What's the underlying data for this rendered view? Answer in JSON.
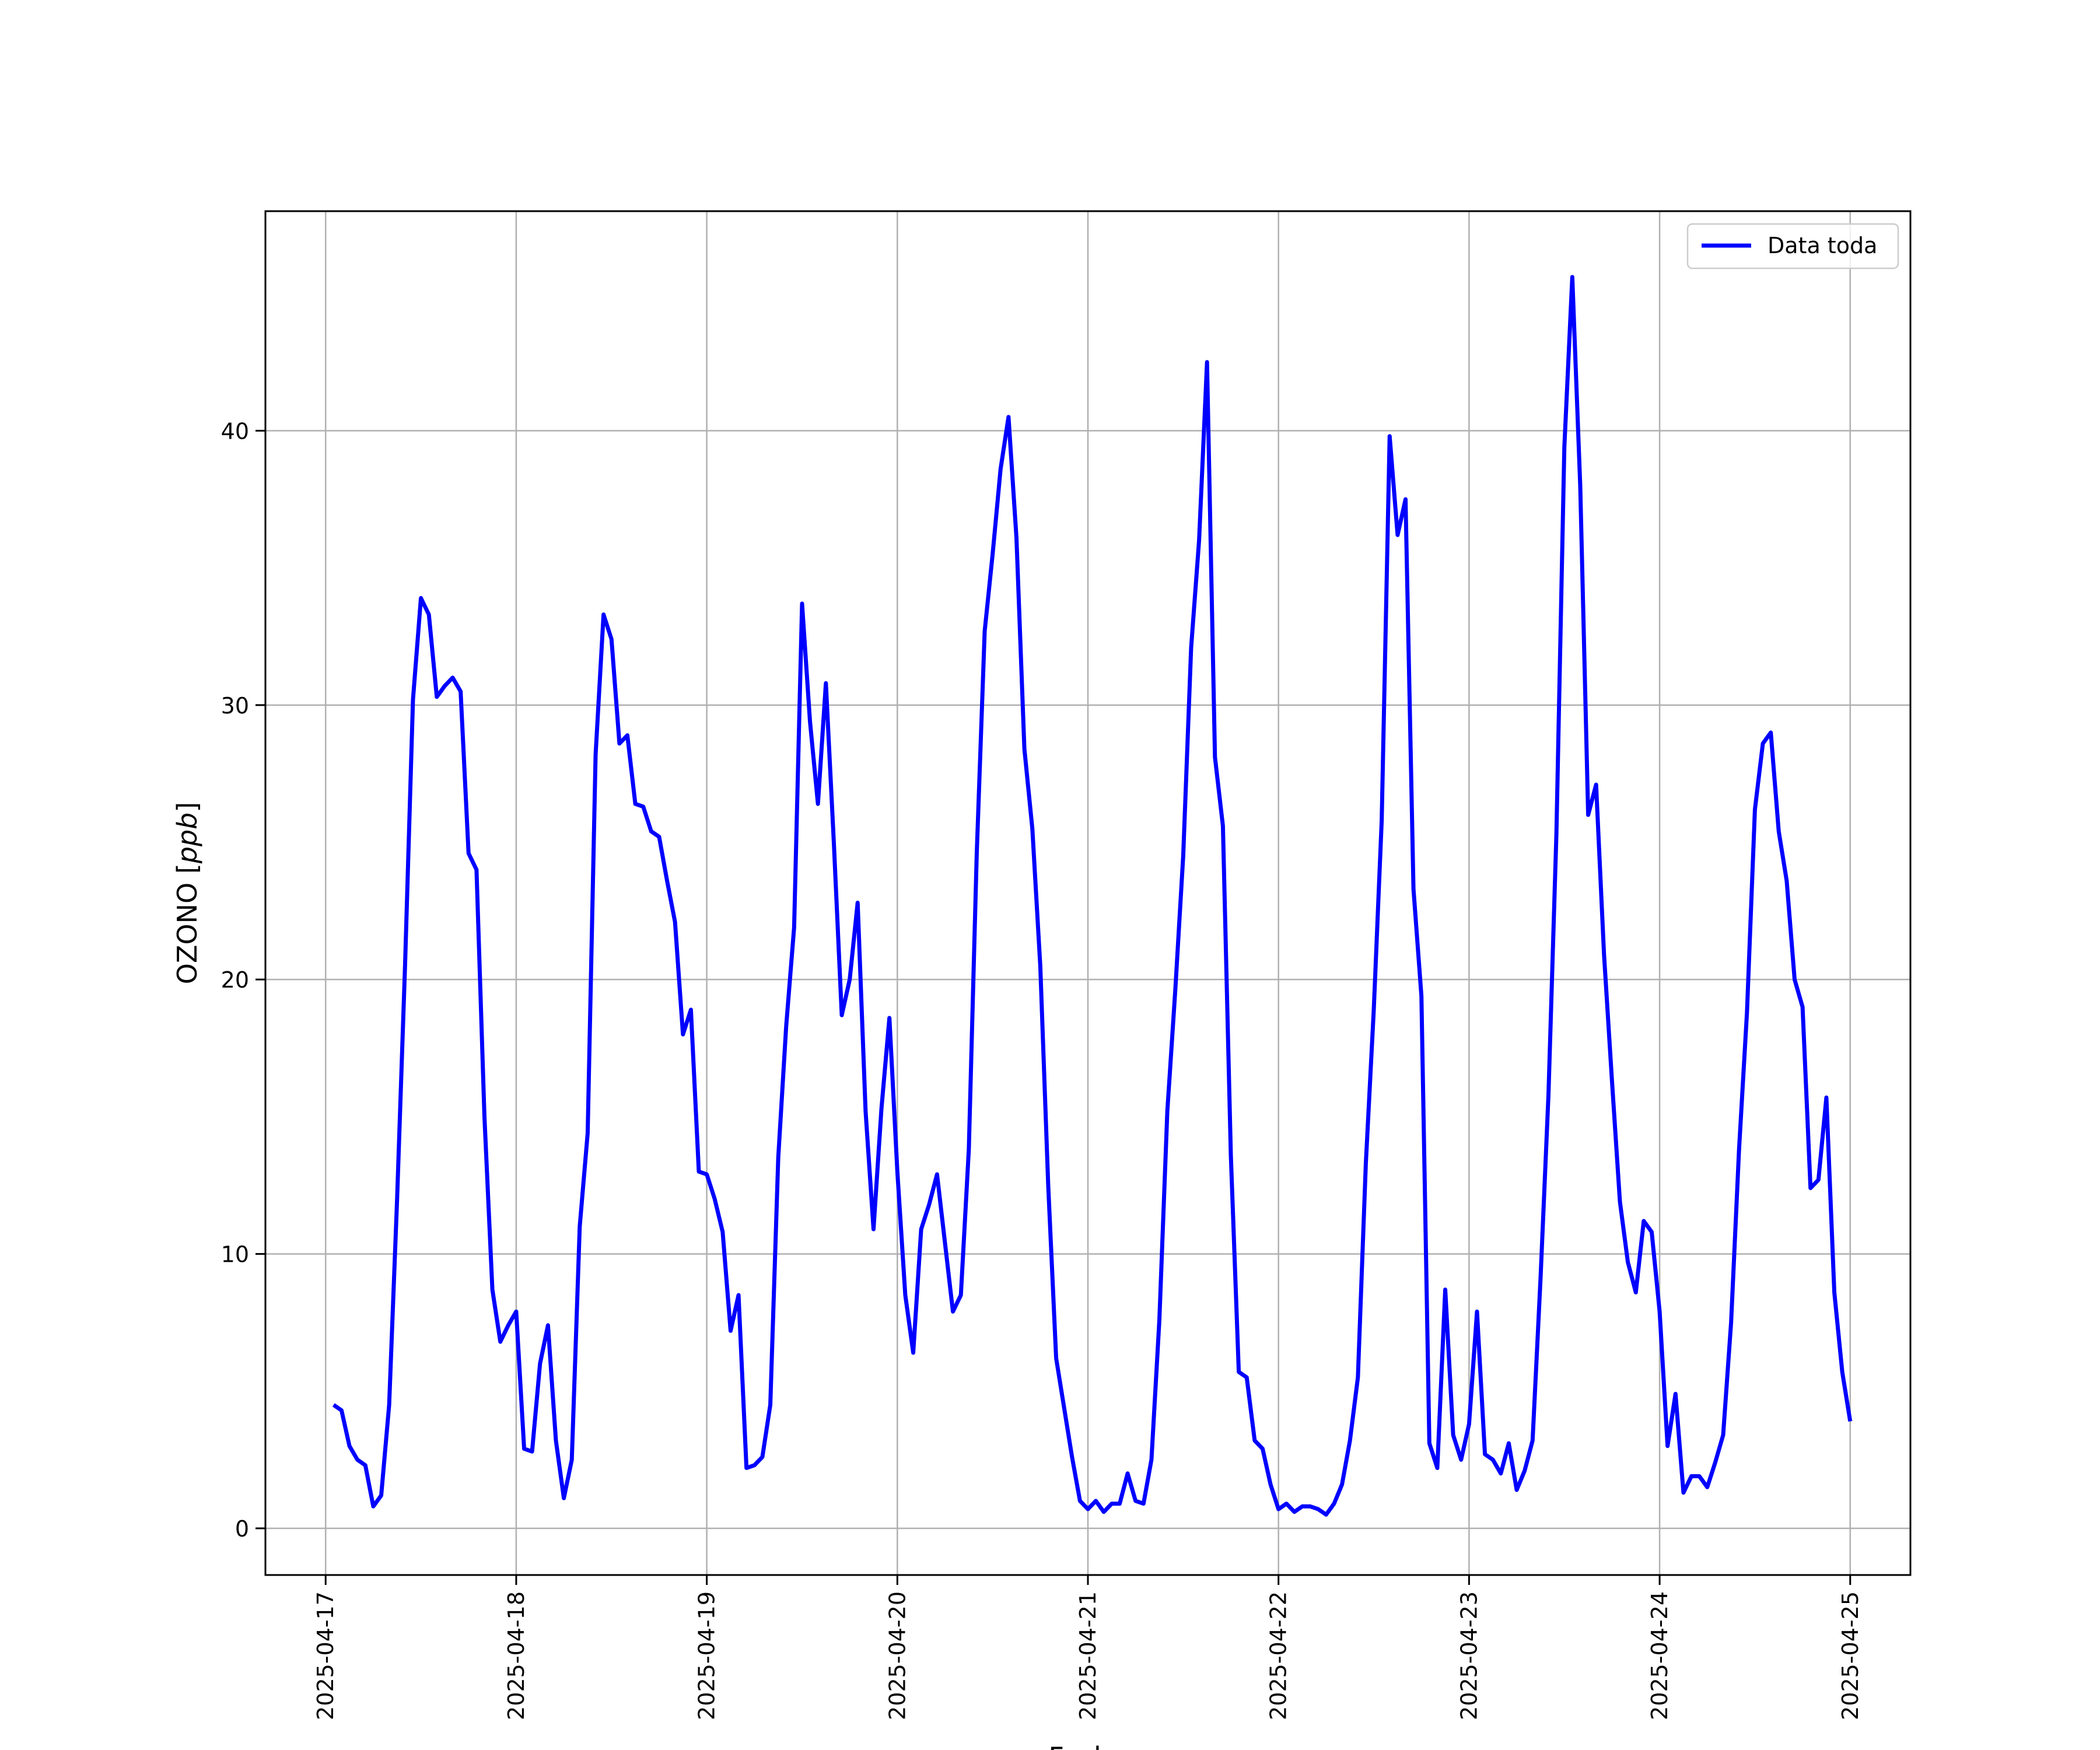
{
  "chart_data": {
    "type": "line",
    "title": "",
    "xlabel": "Fecha",
    "ylabel_main": "OZONO [",
    "ylabel_unit": "ppb",
    "ylabel_close": "]",
    "xlim": [
      "2025-04-16 16:25",
      "2025-04-25 07:35"
    ],
    "ylim": [
      -1.7,
      48
    ],
    "grid": true,
    "legend_position": "top-right",
    "x_tick_labels": [
      "2025-04-17",
      "2025-04-18",
      "2025-04-19",
      "2025-04-20",
      "2025-04-21",
      "2025-04-22",
      "2025-04-23",
      "2025-04-24",
      "2025-04-25"
    ],
    "y_ticks": [
      0,
      10,
      20,
      30,
      40
    ],
    "colors": {
      "series": "#0000ff",
      "grid": "#b0b0b0",
      "axes": "#000000"
    },
    "series": [
      {
        "name": "Data toda",
        "start": "2025-04-17 01:00",
        "interval_minutes": 60,
        "values": [
          4.5,
          4.3,
          3.0,
          2.5,
          2.3,
          0.8,
          1.2,
          4.5,
          12.0,
          20.5,
          30.2,
          33.9,
          33.3,
          30.3,
          30.7,
          31.0,
          30.5,
          24.6,
          24.0,
          15.0,
          8.7,
          6.8,
          7.4,
          7.9,
          2.9,
          2.8,
          6.0,
          7.4,
          3.2,
          1.1,
          2.5,
          11.0,
          14.4,
          28.2,
          33.3,
          32.4,
          28.6,
          28.9,
          26.4,
          26.3,
          25.4,
          25.2,
          23.6,
          22.1,
          18.0,
          18.9,
          13.0,
          12.9,
          12.0,
          10.8,
          7.2,
          8.5,
          2.2,
          2.3,
          2.6,
          4.5,
          13.5,
          18.3,
          21.9,
          33.7,
          29.4,
          26.4,
          30.8,
          25.0,
          18.7,
          20.0,
          22.8,
          15.2,
          10.9,
          15.3,
          18.6,
          13.0,
          8.5,
          6.4,
          10.9,
          11.8,
          12.9,
          10.4,
          7.9,
          8.5,
          13.8,
          24.6,
          32.7,
          35.5,
          38.6,
          40.5,
          36.1,
          28.4,
          25.5,
          20.5,
          12.5,
          6.2,
          4.4,
          2.6,
          1.0,
          0.7,
          1.0,
          0.6,
          0.9,
          0.9,
          2.0,
          1.0,
          0.9,
          2.5,
          7.6,
          15.2,
          19.6,
          24.5,
          32.1,
          36.0,
          42.5,
          28.1,
          25.6,
          13.6,
          5.7,
          5.5,
          3.2,
          2.9,
          1.6,
          0.7,
          0.9,
          0.6,
          0.8,
          0.8,
          0.7,
          0.5,
          0.9,
          1.6,
          3.2,
          5.5,
          13.3,
          18.9,
          25.8,
          39.8,
          36.2,
          37.5,
          23.3,
          19.4,
          3.1,
          2.2,
          8.7,
          3.4,
          2.5,
          3.8,
          7.9,
          2.7,
          2.5,
          2.0,
          3.1,
          1.4,
          2.1,
          3.2,
          9.1,
          15.8,
          25.3,
          39.4,
          45.6,
          38.0,
          26.0,
          27.1,
          20.9,
          16.3,
          11.9,
          9.7,
          8.6,
          11.2,
          10.8,
          7.9,
          3.0,
          4.9,
          1.3,
          1.9,
          1.9,
          1.5,
          2.4,
          3.4,
          7.5,
          13.8,
          18.8,
          26.2,
          28.6,
          29.0,
          25.4,
          23.6,
          20.0,
          19.0,
          12.4,
          12.7,
          15.7,
          8.6,
          5.7,
          3.9
        ]
      }
    ]
  }
}
